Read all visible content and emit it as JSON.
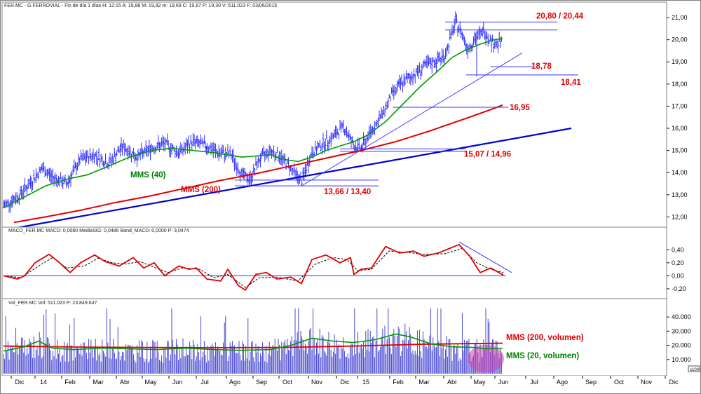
{
  "chart_data": [
    {
      "type": "candlestick",
      "pane": "price",
      "header": "FER.MC - G.FERROVIAL - Fin de día 1 días  H: 12:15  A: 19,88  M: 19,92  m: 19,69  C: 19,87  P: 19,30  V: 511.023  F: 03/06/2015",
      "ylim": [
        11.6,
        21.35
      ],
      "yticks": [
        "12,00",
        "13,00",
        "14,00",
        "15,00",
        "16,00",
        "17,00",
        "18,00",
        "19,00",
        "20,00",
        "21,00"
      ],
      "colors": {
        "price": "#1a1aff",
        "mms40": "#009900",
        "mms200": "#e00000",
        "trend_major": "#0000cc",
        "trend_minor": "#4040ff",
        "levels": "#3333ff",
        "label_red": "#e00000",
        "label_green": "#008000"
      },
      "price_path": [
        [
          0,
          12.5
        ],
        [
          20,
          12.9
        ],
        [
          40,
          13.6
        ],
        [
          55,
          14.2
        ],
        [
          70,
          13.8
        ],
        [
          90,
          13.5
        ],
        [
          110,
          14.6
        ],
        [
          130,
          14.8
        ],
        [
          150,
          14.4
        ],
        [
          170,
          15.2
        ],
        [
          190,
          14.7
        ],
        [
          210,
          15.1
        ],
        [
          230,
          15.3
        ],
        [
          250,
          14.9
        ],
        [
          270,
          15.4
        ],
        [
          290,
          15.2
        ],
        [
          305,
          14.9
        ],
        [
          325,
          14.8
        ],
        [
          340,
          13.9
        ],
        [
          352,
          13.7
        ],
        [
          365,
          14.6
        ],
        [
          380,
          15.0
        ],
        [
          392,
          14.8
        ],
        [
          410,
          14.2
        ],
        [
          425,
          13.6
        ],
        [
          440,
          14.9
        ],
        [
          455,
          15.3
        ],
        [
          470,
          15.6
        ],
        [
          485,
          16.1
        ],
        [
          500,
          15.2
        ],
        [
          510,
          15.1
        ],
        [
          525,
          15.9
        ],
        [
          540,
          16.6
        ],
        [
          555,
          17.6
        ],
        [
          570,
          18.1
        ],
        [
          585,
          18.4
        ],
        [
          600,
          18.8
        ],
        [
          615,
          19.0
        ],
        [
          630,
          19.3
        ],
        [
          645,
          20.8
        ],
        [
          655,
          20.2
        ],
        [
          662,
          19.6
        ],
        [
          672,
          20.0
        ],
        [
          685,
          20.4
        ],
        [
          700,
          19.8
        ],
        [
          712,
          19.9
        ]
      ],
      "mms40": [
        [
          0,
          12.4
        ],
        [
          30,
          12.9
        ],
        [
          60,
          13.4
        ],
        [
          90,
          13.7
        ],
        [
          120,
          13.9
        ],
        [
          150,
          14.3
        ],
        [
          180,
          14.7
        ],
        [
          210,
          15.0
        ],
        [
          240,
          15.1
        ],
        [
          270,
          15.0
        ],
        [
          300,
          14.9
        ],
        [
          320,
          14.8
        ],
        [
          340,
          14.7
        ],
        [
          360,
          14.75
        ],
        [
          380,
          14.8
        ],
        [
          400,
          14.6
        ],
        [
          420,
          14.5
        ],
        [
          440,
          14.7
        ],
        [
          460,
          15.0
        ],
        [
          480,
          15.2
        ],
        [
          500,
          15.4
        ],
        [
          520,
          15.7
        ],
        [
          545,
          16.3
        ],
        [
          570,
          17.1
        ],
        [
          595,
          17.9
        ],
        [
          620,
          18.6
        ],
        [
          640,
          19.2
        ],
        [
          660,
          19.55
        ],
        [
          680,
          19.8
        ],
        [
          700,
          20.0
        ],
        [
          712,
          20.05
        ]
      ],
      "mms200": [
        [
          15,
          11.75
        ],
        [
          60,
          12.0
        ],
        [
          110,
          12.3
        ],
        [
          160,
          12.65
        ],
        [
          210,
          12.95
        ],
        [
          260,
          13.3
        ],
        [
          310,
          13.65
        ],
        [
          360,
          13.95
        ],
        [
          410,
          14.3
        ],
        [
          460,
          14.65
        ],
        [
          510,
          15.0
        ],
        [
          560,
          15.4
        ],
        [
          610,
          15.9
        ],
        [
          660,
          16.45
        ],
        [
          700,
          16.9
        ],
        [
          712,
          17.05
        ]
      ],
      "trend_major": [
        [
          0,
          11.4
        ],
        [
          810,
          16.0
        ]
      ],
      "trend_minor": [
        [
          425,
          13.4
        ],
        [
          740,
          19.4
        ]
      ],
      "support_resistance": [
        {
          "label": "20,80 / 20,44",
          "levels": [
            20.8,
            20.44
          ],
          "x": [
            630,
            790
          ]
        },
        {
          "label": "18,78",
          "levels": [
            18.78
          ],
          "x": [
            695,
            755
          ]
        },
        {
          "label": "18,41",
          "levels": [
            18.41
          ],
          "x": [
            660,
            820
          ]
        },
        {
          "label": "16,95",
          "levels": [
            16.95
          ],
          "x": [
            555,
            720
          ]
        },
        {
          "label": "15,07 / 14,96",
          "levels": [
            15.07,
            14.96
          ],
          "x": [
            480,
            660
          ]
        },
        {
          "label": "13,66 / 13,40",
          "levels": [
            13.66,
            13.4
          ],
          "x": [
            330,
            535
          ]
        }
      ],
      "series_labels": {
        "mms40": "MMS (40)",
        "mms200": "MMS (200)"
      }
    },
    {
      "type": "line",
      "pane": "macd",
      "header": "MACD_FER.MC  MACD: 0,0080  MediaSIG: 0,0486  Band_MACD: 0,0000  P: 3,0474",
      "ylim": [
        -0.33,
        0.64
      ],
      "yticks": [
        "0,40",
        "0,20",
        "0,00",
        "-0,20"
      ],
      "macd": [
        [
          0,
          0.0
        ],
        [
          20,
          -0.05
        ],
        [
          30,
          0.0
        ],
        [
          45,
          0.2
        ],
        [
          65,
          0.33
        ],
        [
          80,
          0.2
        ],
        [
          95,
          0.05
        ],
        [
          110,
          0.2
        ],
        [
          130,
          0.32
        ],
        [
          145,
          0.22
        ],
        [
          165,
          0.15
        ],
        [
          185,
          0.28
        ],
        [
          200,
          0.12
        ],
        [
          215,
          0.2
        ],
        [
          230,
          0.0
        ],
        [
          250,
          0.15
        ],
        [
          265,
          0.1
        ],
        [
          275,
          0.12
        ],
        [
          290,
          -0.05
        ],
        [
          310,
          -0.08
        ],
        [
          320,
          0.1
        ],
        [
          335,
          -0.15
        ],
        [
          345,
          -0.22
        ],
        [
          360,
          0.02
        ],
        [
          375,
          0.05
        ],
        [
          390,
          -0.05
        ],
        [
          410,
          -0.02
        ],
        [
          425,
          -0.12
        ],
        [
          440,
          0.25
        ],
        [
          460,
          0.32
        ],
        [
          480,
          0.2
        ],
        [
          495,
          0.28
        ],
        [
          500,
          0.02
        ],
        [
          510,
          0.1
        ],
        [
          525,
          0.12
        ],
        [
          545,
          0.45
        ],
        [
          565,
          0.35
        ],
        [
          585,
          0.38
        ],
        [
          600,
          0.3
        ],
        [
          620,
          0.35
        ],
        [
          650,
          0.48
        ],
        [
          665,
          0.3
        ],
        [
          680,
          0.05
        ],
        [
          695,
          0.12
        ],
        [
          705,
          0.06
        ],
        [
          713,
          0.01
        ]
      ],
      "signal": [
        [
          0,
          0.0
        ],
        [
          25,
          -0.03
        ],
        [
          50,
          0.15
        ],
        [
          70,
          0.28
        ],
        [
          90,
          0.12
        ],
        [
          115,
          0.15
        ],
        [
          135,
          0.27
        ],
        [
          155,
          0.2
        ],
        [
          175,
          0.18
        ],
        [
          195,
          0.22
        ],
        [
          210,
          0.15
        ],
        [
          235,
          0.05
        ],
        [
          255,
          0.12
        ],
        [
          280,
          0.1
        ],
        [
          300,
          -0.03
        ],
        [
          320,
          0.02
        ],
        [
          345,
          -0.18
        ],
        [
          365,
          -0.03
        ],
        [
          390,
          -0.02
        ],
        [
          420,
          -0.08
        ],
        [
          445,
          0.18
        ],
        [
          470,
          0.28
        ],
        [
          490,
          0.25
        ],
        [
          505,
          0.08
        ],
        [
          525,
          0.1
        ],
        [
          550,
          0.38
        ],
        [
          575,
          0.36
        ],
        [
          600,
          0.33
        ],
        [
          630,
          0.34
        ],
        [
          655,
          0.42
        ],
        [
          675,
          0.2
        ],
        [
          695,
          0.1
        ],
        [
          713,
          0.05
        ]
      ],
      "divergence_line": [
        [
          650,
          0.52
        ],
        [
          725,
          0.05
        ]
      ],
      "colors": {
        "macd": "#e00000",
        "signal": "#000000",
        "zero": "#3333ff",
        "divergence": "#3333ff"
      }
    },
    {
      "type": "bar",
      "pane": "volume",
      "header": "Vol_FER.MC  Vol: 511.023  P: 23.849.647",
      "ylim": [
        0,
        47000
      ],
      "yticks": [
        "40.000",
        "30.000",
        "20.000",
        "10.000"
      ],
      "unit_label": "x100",
      "mms20_volumen": [
        [
          0,
          16000
        ],
        [
          30,
          19000
        ],
        [
          50,
          23000
        ],
        [
          70,
          18000
        ],
        [
          100,
          17000
        ],
        [
          140,
          18000
        ],
        [
          180,
          17500
        ],
        [
          220,
          17000
        ],
        [
          260,
          18000
        ],
        [
          300,
          17000
        ],
        [
          340,
          16500
        ],
        [
          380,
          17000
        ],
        [
          410,
          20000
        ],
        [
          440,
          25000
        ],
        [
          470,
          23000
        ],
        [
          500,
          22000
        ],
        [
          530,
          24000
        ],
        [
          560,
          28000
        ],
        [
          580,
          26000
        ],
        [
          610,
          21000
        ],
        [
          640,
          19000
        ],
        [
          670,
          18500
        ],
        [
          690,
          17500
        ],
        [
          712,
          18000
        ]
      ],
      "mms200_volumen": [
        [
          0,
          19500
        ],
        [
          100,
          18800
        ],
        [
          200,
          18500
        ],
        [
          300,
          18300
        ],
        [
          400,
          18500
        ],
        [
          500,
          19500
        ],
        [
          600,
          20800
        ],
        [
          712,
          21500
        ]
      ],
      "colors": {
        "bars": "#3333cc",
        "mms20": "#009900",
        "mms200": "#e00000",
        "highlight": "#cc44aa"
      },
      "series_labels": {
        "mms200": "MMS (200, volumen)",
        "mms20": "MMS (20, volumen)"
      }
    }
  ],
  "x_axis": {
    "labels": [
      "Dic",
      "14",
      "Feb",
      "Mar",
      "Abr",
      "May",
      "Jun",
      "Jul",
      "Ago",
      "Sep",
      "Oct",
      "Nov",
      "Dic",
      "15",
      "Feb",
      "Mar",
      "Abr",
      "May",
      "Jun",
      "Jul",
      "Ago",
      "Sep",
      "Oct",
      "Nov",
      "Dic"
    ],
    "positions": [
      28,
      62,
      100,
      140,
      178,
      215,
      253,
      292,
      335,
      373,
      410,
      452,
      492,
      522,
      568,
      605,
      645,
      684,
      718,
      762,
      802,
      843,
      883,
      922,
      961
    ]
  }
}
